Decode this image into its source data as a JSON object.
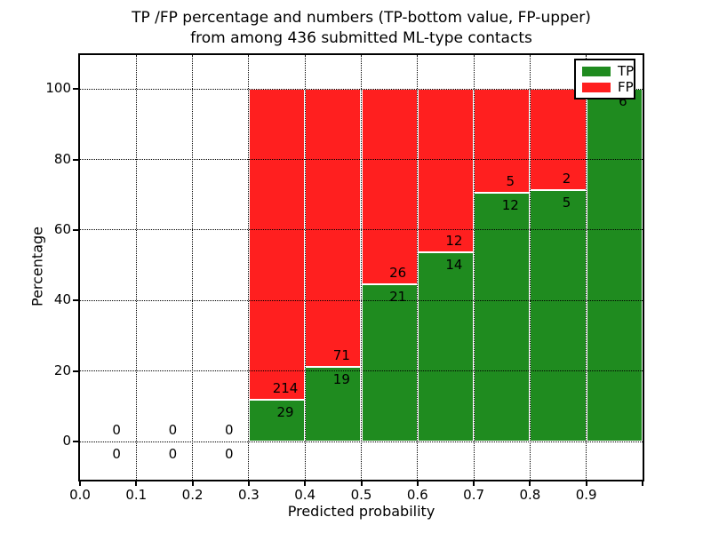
{
  "title": {
    "line1": "TP /FP percentage and numbers (TP-bottom value, FP-upper)",
    "line2": "from among 436 submitted ML-type contacts"
  },
  "axes": {
    "xlabel": "Predicted probability",
    "ylabel": "Percentage"
  },
  "legend": {
    "items": [
      {
        "label": "TP",
        "color": "#1f8b1f"
      },
      {
        "label": "FP",
        "color": "#ff1f1f"
      }
    ]
  },
  "colors": {
    "tp": "#1f8b1f",
    "fp": "#ff1f1f",
    "bar_edge": "#ffffff",
    "grid": "#000000",
    "text": "#000000",
    "background": "#ffffff"
  },
  "chart_data": {
    "type": "bar",
    "stacked": true,
    "normalized": "each bin scaled to 100%",
    "title": "TP /FP percentage and numbers (TP-bottom value, FP-upper) from among 436 submitted ML-type contacts",
    "xlabel": "Predicted probability",
    "ylabel": "Percentage",
    "total_contacts": 436,
    "xlim": [
      0,
      1.0
    ],
    "ylim": [
      -10.8,
      109.6
    ],
    "bin_width": 0.1,
    "label_x_offset": 0.065,
    "grid": true,
    "legend_position": "upper right",
    "x_ticks": {
      "positions": [
        0,
        0.1,
        0.2,
        0.3,
        0.4,
        0.5,
        0.6,
        0.7,
        0.8,
        0.9,
        1.0
      ],
      "labels": [
        "0.0",
        "0.1",
        "0.2",
        "0.3",
        "0.4",
        "0.5",
        "0.6",
        "0.7",
        "0.8",
        "0.9",
        ""
      ]
    },
    "y_ticks": {
      "positions": [
        0,
        20,
        40,
        60,
        80,
        100
      ],
      "labels": [
        "0",
        "20",
        "40",
        "60",
        "80",
        "100"
      ]
    },
    "x_grid": [
      0.1,
      0.2,
      0.3,
      0.4,
      0.5,
      0.6,
      0.7,
      0.8,
      0.9
    ],
    "series": [
      {
        "name": "TP",
        "values": [
          0,
          0,
          0,
          29,
          19,
          21,
          14,
          12,
          5,
          6
        ]
      },
      {
        "name": "FP",
        "values": [
          0,
          0,
          0,
          214,
          71,
          26,
          12,
          5,
          2,
          0
        ]
      }
    ],
    "bins": [
      {
        "start": 0.0,
        "tp": 0,
        "fp": 0,
        "tp_pct": 0,
        "fp_pct": 0
      },
      {
        "start": 0.1,
        "tp": 0,
        "fp": 0,
        "tp_pct": 0,
        "fp_pct": 0
      },
      {
        "start": 0.2,
        "tp": 0,
        "fp": 0,
        "tp_pct": 0,
        "fp_pct": 0
      },
      {
        "start": 0.3,
        "tp": 29,
        "fp": 214,
        "tp_pct": 11.9,
        "fp_pct": 88.1
      },
      {
        "start": 0.4,
        "tp": 19,
        "fp": 71,
        "tp_pct": 21.1,
        "fp_pct": 78.9
      },
      {
        "start": 0.5,
        "tp": 21,
        "fp": 26,
        "tp_pct": 44.7,
        "fp_pct": 55.3
      },
      {
        "start": 0.6,
        "tp": 14,
        "fp": 12,
        "tp_pct": 53.8,
        "fp_pct": 46.2
      },
      {
        "start": 0.7,
        "tp": 12,
        "fp": 5,
        "tp_pct": 70.6,
        "fp_pct": 29.4
      },
      {
        "start": 0.8,
        "tp": 5,
        "fp": 2,
        "tp_pct": 71.4,
        "fp_pct": 28.6
      },
      {
        "start": 0.9,
        "tp": 6,
        "fp": 0,
        "tp_pct": 100,
        "fp_pct": 0
      }
    ]
  }
}
